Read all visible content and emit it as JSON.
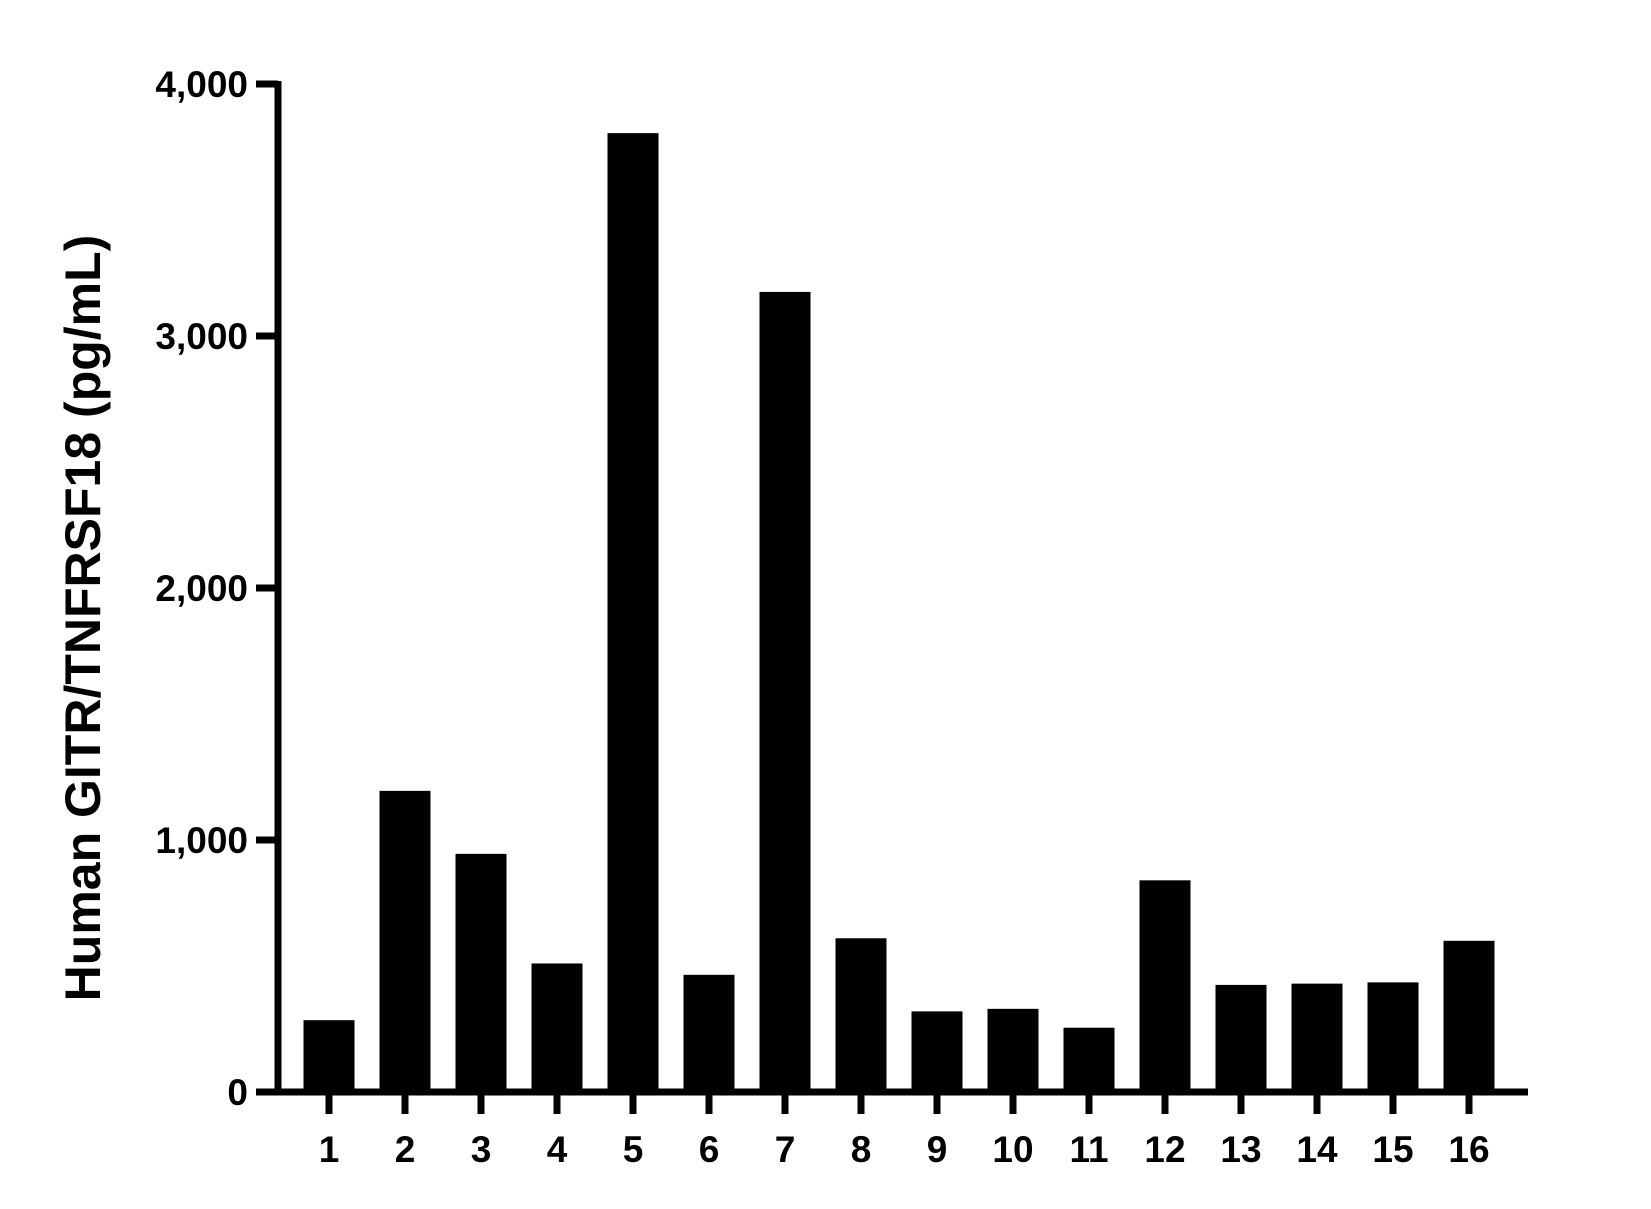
{
  "chart_data": {
    "type": "bar",
    "title": "",
    "xlabel": "",
    "ylabel": "Human GITR/TNFRSF18 (pg/mL)",
    "categories": [
      "1",
      "2",
      "3",
      "4",
      "5",
      "6",
      "7",
      "8",
      "9",
      "10",
      "11",
      "12",
      "13",
      "14",
      "15",
      "16"
    ],
    "values": [
      285,
      1195,
      945,
      510,
      3805,
      465,
      3175,
      610,
      320,
      330,
      255,
      840,
      425,
      430,
      435,
      600
    ],
    "ylim": [
      0,
      4000
    ],
    "yticks": [
      0,
      1000,
      2000,
      3000,
      4000
    ],
    "ytick_labels": [
      "0",
      "1,000",
      "2,000",
      "3,000",
      "4,000"
    ],
    "bar_color": "#000000",
    "grid": false,
    "legend": "none"
  }
}
